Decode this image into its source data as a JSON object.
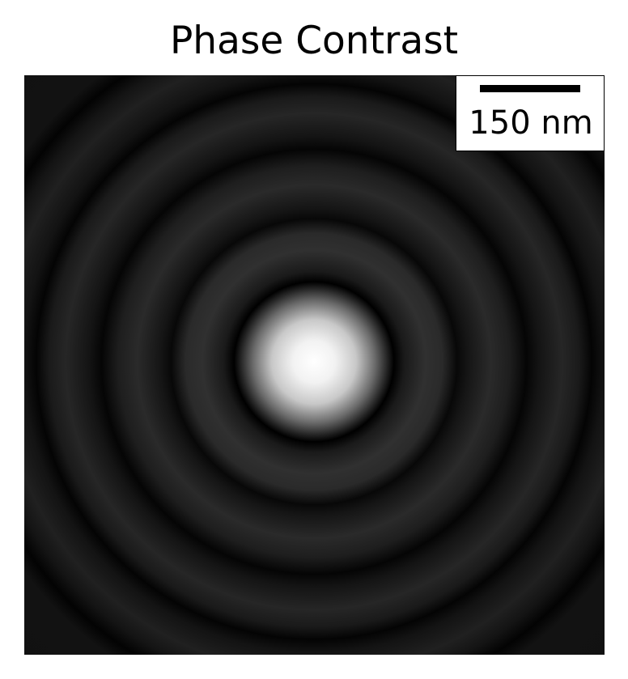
{
  "figure": {
    "title": "Phase Contrast",
    "image_description_colormap": "gray",
    "scale_bar": {
      "label": "150 nm"
    }
  },
  "colors": {
    "background": "#111111",
    "center": "#ffffff",
    "ring_light": "#2f2f2f",
    "ring_dark": "#000000"
  }
}
